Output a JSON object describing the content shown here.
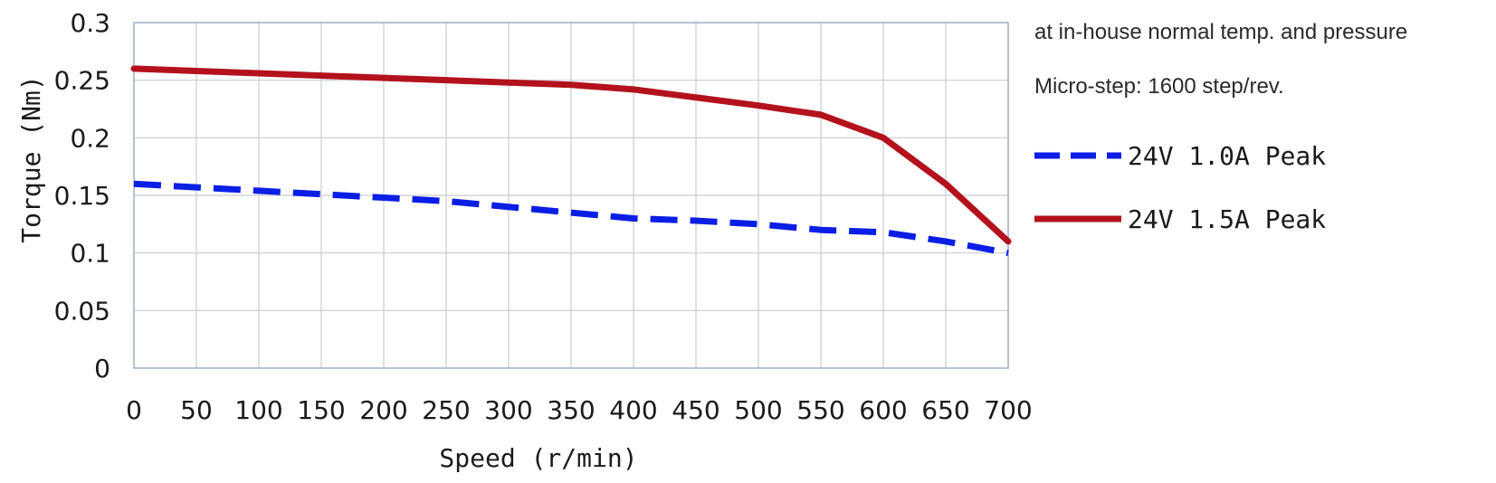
{
  "chart_data": {
    "type": "line",
    "title": "",
    "xlabel": "Speed (r/min)",
    "ylabel": "Torque (Nm)",
    "xlim": [
      0,
      700
    ],
    "ylim": [
      0,
      0.3
    ],
    "x_ticks": [
      0,
      50,
      100,
      150,
      200,
      250,
      300,
      350,
      400,
      450,
      500,
      550,
      600,
      650,
      700
    ],
    "x_tick_labels": [
      "0",
      "50",
      "100",
      "150",
      "200",
      "250",
      "300",
      "350",
      "400",
      "450",
      "500",
      "550",
      "600",
      "650",
      "700"
    ],
    "y_ticks": [
      0,
      0.05,
      0.1,
      0.15,
      0.2,
      0.25,
      0.3
    ],
    "y_tick_labels": [
      "0",
      "0.05",
      "0.1",
      "0.15",
      "0.2",
      "0.25",
      "0.3"
    ],
    "grid": true,
    "legend_position": "right",
    "annotations": [
      "at in-house normal temp. and pressure",
      "Micro-step: 1600 step/rev."
    ],
    "series": [
      {
        "name": "24V 1.0A Peak",
        "style": "dashed",
        "color": "#0a1ee6",
        "x": [
          0,
          50,
          100,
          150,
          200,
          250,
          300,
          350,
          400,
          450,
          500,
          550,
          600,
          650,
          700
        ],
        "y": [
          0.16,
          0.157,
          0.154,
          0.151,
          0.148,
          0.145,
          0.14,
          0.135,
          0.13,
          0.128,
          0.125,
          0.12,
          0.118,
          0.11,
          0.1
        ]
      },
      {
        "name": "24V 1.5A Peak",
        "style": "solid",
        "color": "#b3121c",
        "x": [
          0,
          50,
          100,
          150,
          200,
          250,
          300,
          350,
          400,
          450,
          500,
          550,
          600,
          650,
          700
        ],
        "y": [
          0.26,
          0.258,
          0.256,
          0.254,
          0.252,
          0.25,
          0.248,
          0.246,
          0.242,
          0.235,
          0.228,
          0.22,
          0.2,
          0.16,
          0.11
        ]
      }
    ]
  },
  "colors": {
    "grid": "#c8ccd2",
    "axis_border": "#9fb2cc"
  }
}
